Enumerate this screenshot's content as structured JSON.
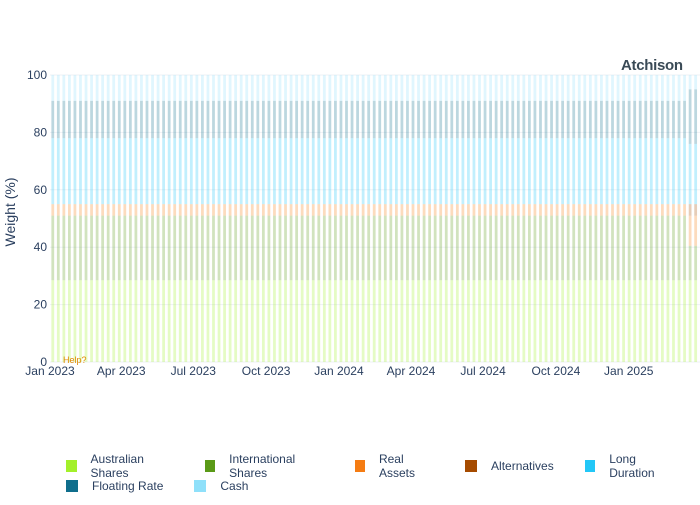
{
  "brand": {
    "logo_text": "Atchison",
    "help_text": "Help?"
  },
  "chart_data": {
    "type": "bar",
    "stacked": true,
    "ylabel": "Weight (%)",
    "ylim": [
      0,
      100
    ],
    "yticks": [
      0,
      20,
      40,
      60,
      80,
      100
    ],
    "x_start": "Jan 2023",
    "x_end": "Apr 2025",
    "xticks": [
      "Jan 2023",
      "Apr 2023",
      "Jul 2023",
      "Oct 2023",
      "Jan 2024",
      "Apr 2024",
      "Jul 2024",
      "Oct 2024",
      "Jan 2025"
    ],
    "legend_position": "bottom",
    "series": [
      {
        "name": "Australian Shares",
        "color": "#a3f02a",
        "value": 28.5
      },
      {
        "name": "International Shares",
        "color": "#5a9a17",
        "value": 22.5
      },
      {
        "name": "Real Assets",
        "color": "#f57c13",
        "value": 4
      },
      {
        "name": "Alternatives",
        "color": "#a64b00",
        "value": 0
      },
      {
        "name": "Long Duration",
        "color": "#22c7f7",
        "value": 23
      },
      {
        "name": "Floating Rate",
        "color": "#0f6e8c",
        "value": 13
      },
      {
        "name": "Cash",
        "color": "#8fe0fa",
        "value": 9
      }
    ],
    "last_period_values": [
      28.5,
      12,
      10.5,
      4,
      21,
      19,
      5
    ]
  }
}
